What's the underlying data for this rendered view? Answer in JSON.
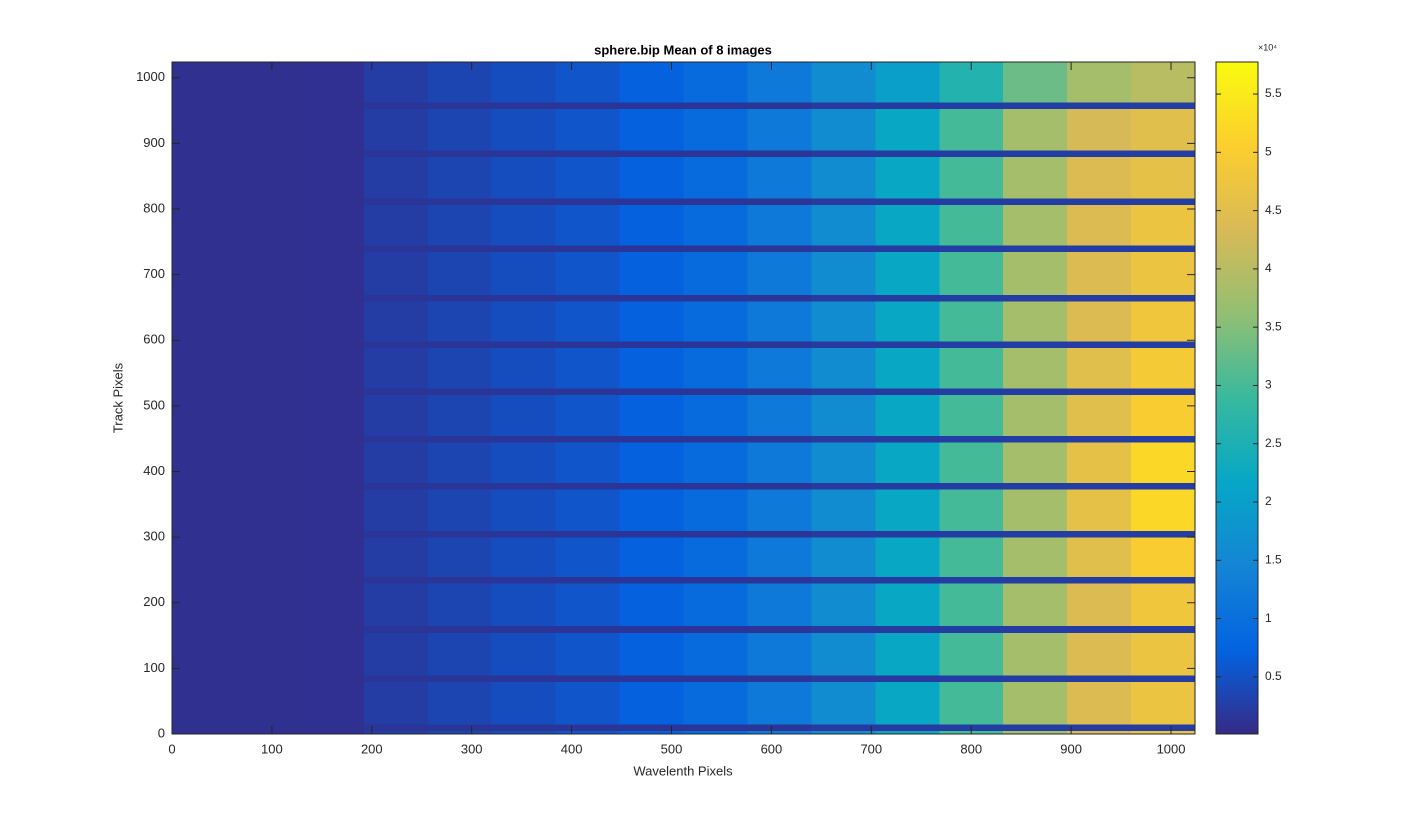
{
  "chart_data": {
    "type": "heatmap",
    "title": "sphere.bip  Mean of 8 images",
    "x_label": "Wavelenth Pixels",
    "y_label": "Track Pixels",
    "xlim": [
      0,
      1024
    ],
    "ylim": [
      0,
      1024
    ],
    "xticks": [
      0,
      100,
      200,
      300,
      400,
      500,
      600,
      700,
      800,
      900,
      1000
    ],
    "yticks": [
      0,
      100,
      200,
      300,
      400,
      500,
      600,
      700,
      800,
      900,
      1000
    ],
    "x_edges": [
      0,
      64,
      128,
      192,
      256,
      320,
      384,
      448,
      512,
      576,
      640,
      704,
      768,
      832,
      896,
      960,
      1024
    ],
    "y_edges": [
      0,
      5,
      15,
      80,
      90,
      155,
      165,
      230,
      240,
      300,
      310,
      373,
      383,
      445,
      455,
      517,
      527,
      589,
      599,
      660,
      670,
      735,
      745,
      807,
      817,
      880,
      890,
      953,
      963,
      1024
    ],
    "z": [
      [
        800,
        800,
        900,
        2500,
        3500,
        4500,
        5500,
        7000,
        9000,
        12000,
        16000,
        22000,
        30000,
        38000,
        44000,
        47000
      ],
      [
        800,
        800,
        800,
        1500,
        1500,
        1500,
        1500,
        1500,
        1500,
        1500,
        2000,
        2000,
        2500,
        2500,
        2500,
        2500
      ],
      [
        800,
        800,
        900,
        2500,
        3500,
        4500,
        5500,
        7000,
        9000,
        12000,
        16000,
        22000,
        30000,
        38000,
        44000,
        47000
      ],
      [
        800,
        800,
        800,
        1500,
        1500,
        1500,
        1500,
        1500,
        1500,
        1500,
        2000,
        2000,
        2500,
        2500,
        2500,
        2500
      ],
      [
        800,
        800,
        900,
        2500,
        3500,
        4500,
        5500,
        7000,
        9000,
        12000,
        16000,
        22000,
        30000,
        38000,
        44000,
        47000
      ],
      [
        800,
        800,
        800,
        1500,
        1500,
        1500,
        1500,
        1500,
        1500,
        1500,
        2000,
        2000,
        2500,
        2500,
        2500,
        2500
      ],
      [
        800,
        800,
        900,
        2500,
        3500,
        4500,
        5500,
        7000,
        9000,
        12000,
        16000,
        22000,
        30000,
        38000,
        44000,
        48000
      ],
      [
        800,
        800,
        800,
        1500,
        1500,
        1500,
        1500,
        1500,
        1500,
        1500,
        2000,
        2000,
        2500,
        2500,
        2500,
        2500
      ],
      [
        800,
        800,
        900,
        2500,
        3500,
        4500,
        5500,
        7000,
        9000,
        12000,
        16000,
        22000,
        30000,
        38000,
        45000,
        50000
      ],
      [
        800,
        800,
        800,
        1500,
        1500,
        1500,
        1500,
        1500,
        1500,
        1500,
        2000,
        2000,
        2500,
        2500,
        2500,
        2500
      ],
      [
        800,
        800,
        900,
        2500,
        3500,
        4500,
        5500,
        7000,
        9000,
        12000,
        16000,
        22000,
        30000,
        38000,
        46000,
        52000
      ],
      [
        800,
        800,
        800,
        1500,
        1500,
        1500,
        1500,
        1500,
        1500,
        1500,
        2000,
        2000,
        2500,
        2500,
        2500,
        2500
      ],
      [
        800,
        800,
        900,
        2500,
        3500,
        4500,
        5500,
        7000,
        9000,
        12000,
        16000,
        22000,
        30000,
        38000,
        46000,
        52000
      ],
      [
        800,
        800,
        800,
        1500,
        1500,
        1500,
        1500,
        1500,
        1500,
        1500,
        2000,
        2000,
        2500,
        2500,
        2500,
        2500
      ],
      [
        800,
        800,
        900,
        2500,
        3500,
        4500,
        5500,
        7000,
        9000,
        12000,
        16000,
        22000,
        30000,
        38000,
        45000,
        50000
      ],
      [
        800,
        800,
        800,
        1500,
        1500,
        1500,
        1500,
        1500,
        1500,
        1500,
        2000,
        2000,
        2500,
        2500,
        2500,
        2500
      ],
      [
        800,
        800,
        900,
        2500,
        3500,
        4500,
        5500,
        7000,
        9000,
        12000,
        16000,
        22000,
        30000,
        38000,
        45000,
        49000
      ],
      [
        800,
        800,
        800,
        1500,
        1500,
        1500,
        1500,
        1500,
        1500,
        1500,
        2000,
        2000,
        2500,
        2500,
        2500,
        2500
      ],
      [
        800,
        800,
        900,
        2500,
        3500,
        4500,
        5500,
        7000,
        9000,
        12000,
        16000,
        22000,
        30000,
        38000,
        44000,
        48000
      ],
      [
        800,
        800,
        800,
        1500,
        1500,
        1500,
        1500,
        1500,
        1500,
        1500,
        2000,
        2000,
        2500,
        2500,
        2500,
        2500
      ],
      [
        800,
        800,
        900,
        2500,
        3500,
        4500,
        5500,
        7000,
        9000,
        12000,
        16000,
        22000,
        30000,
        38000,
        44000,
        47000
      ],
      [
        800,
        800,
        800,
        1500,
        1500,
        1500,
        1500,
        1500,
        1500,
        1500,
        2000,
        2000,
        2500,
        2500,
        2500,
        2500
      ],
      [
        800,
        800,
        900,
        2500,
        3500,
        4500,
        5500,
        7000,
        9000,
        12000,
        16000,
        22000,
        30000,
        38000,
        44000,
        47000
      ],
      [
        800,
        800,
        800,
        1500,
        1500,
        1500,
        1500,
        1500,
        1500,
        1500,
        2000,
        2000,
        2500,
        2500,
        2500,
        2500
      ],
      [
        800,
        800,
        900,
        2500,
        3500,
        4500,
        5500,
        7000,
        9000,
        12000,
        16000,
        22000,
        30000,
        38000,
        44000,
        46000
      ],
      [
        800,
        800,
        800,
        1500,
        1500,
        1500,
        1500,
        1500,
        1500,
        1500,
        2000,
        2000,
        2500,
        2500,
        2500,
        2500
      ],
      [
        800,
        800,
        900,
        2500,
        3500,
        4500,
        5500,
        7000,
        9000,
        12000,
        16000,
        22000,
        30000,
        38000,
        43000,
        45000
      ],
      [
        800,
        800,
        800,
        1500,
        1500,
        1500,
        1500,
        1500,
        1500,
        1500,
        2000,
        2000,
        2500,
        2500,
        2500,
        2500
      ],
      [
        800,
        800,
        900,
        2500,
        3500,
        4500,
        5500,
        7000,
        9000,
        12000,
        16000,
        20000,
        26000,
        33000,
        38000,
        40000
      ]
    ],
    "clim": [
      100,
      57750
    ],
    "colormap": [
      "#352a87",
      "#0363e1",
      "#1485d4",
      "#06a7c6",
      "#38b99e",
      "#92bf73",
      "#d9ba56",
      "#fcce2e",
      "#f9fb0e"
    ],
    "colorbar_exponent": "×10⁴",
    "colorbar_ticks": [
      {
        "value": 5000,
        "label": "0.5"
      },
      {
        "value": 10000,
        "label": "1"
      },
      {
        "value": 15000,
        "label": "1.5"
      },
      {
        "value": 20000,
        "label": "2"
      },
      {
        "value": 25000,
        "label": "2.5"
      },
      {
        "value": 30000,
        "label": "3"
      },
      {
        "value": 35000,
        "label": "3.5"
      },
      {
        "value": 40000,
        "label": "4"
      },
      {
        "value": 45000,
        "label": "4.5"
      },
      {
        "value": 50000,
        "label": "5"
      },
      {
        "value": 55000,
        "label": "5.5"
      }
    ]
  }
}
